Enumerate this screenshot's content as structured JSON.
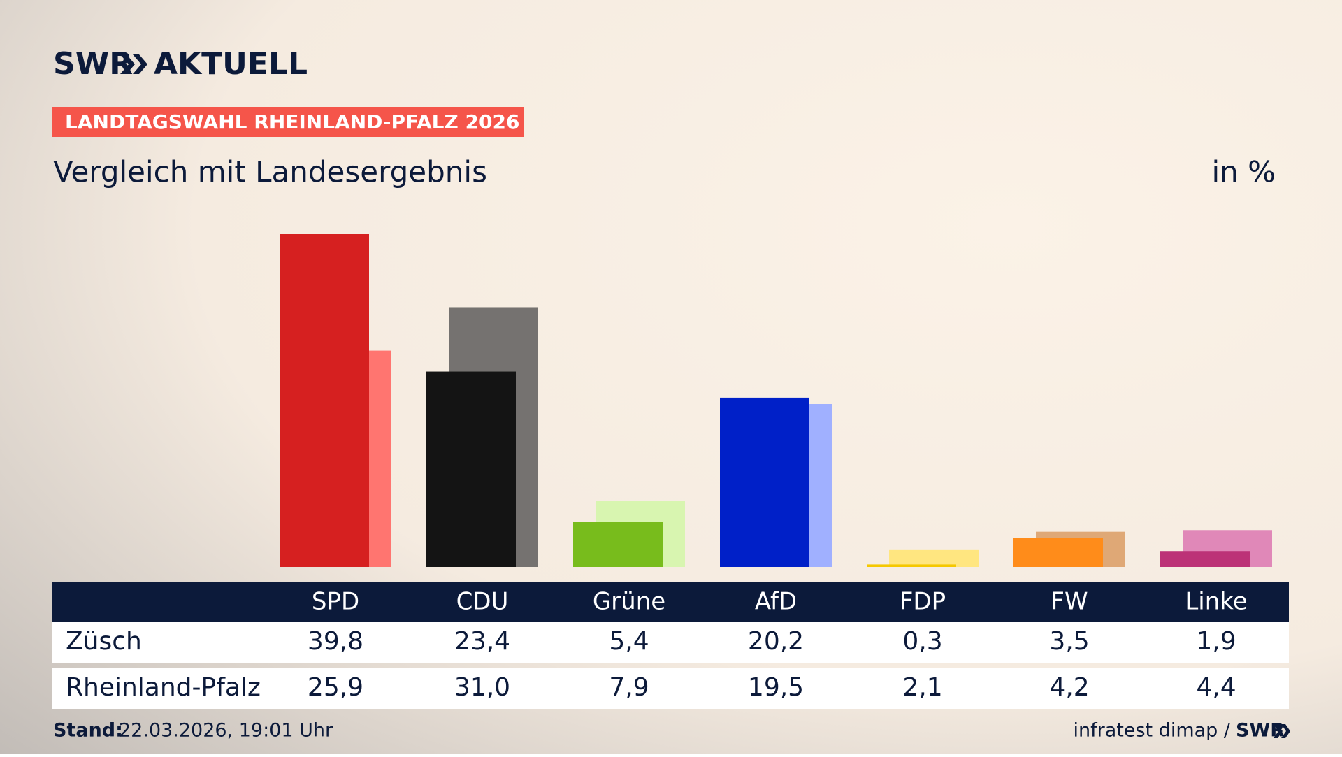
{
  "brand": {
    "left": "SWR",
    "right": "AKTUELL"
  },
  "chart_data": {
    "type": "bar",
    "banner": "LANDTAGSWAHL RHEINLAND-PFALZ 2026",
    "title": "Vergleich mit Landesergebnis",
    "unit": "in %",
    "categories": [
      "SPD",
      "CDU",
      "Grüne",
      "AfD",
      "FDP",
      "FW",
      "Linke"
    ],
    "series": [
      {
        "name": "Züsch",
        "values": [
          39.8,
          23.4,
          5.4,
          20.2,
          0.3,
          3.5,
          1.9
        ],
        "value_labels": [
          "39,8",
          "23,4",
          "5,4",
          "20,2",
          "0,3",
          "3,5",
          "1,9"
        ],
        "colors": [
          "#d62020",
          "#141414",
          "#78bc1c",
          "#0020c8",
          "#f5c800",
          "#ff8c1a",
          "#bc3277"
        ]
      },
      {
        "name": "Rheinland-Pfalz",
        "values": [
          25.9,
          31.0,
          7.9,
          19.5,
          2.1,
          4.2,
          4.4
        ],
        "value_labels": [
          "25,9",
          "31,0",
          "7,9",
          "19,5",
          "2,1",
          "4,2",
          "4,4"
        ],
        "colors": [
          "#ff7570",
          "#757270",
          "#d8f5b0",
          "#a0b0ff",
          "#ffe680",
          "#dfa876",
          "#e088b8"
        ]
      }
    ]
  },
  "footer": {
    "stand_label": "Stand:",
    "stand": "22.03.2026, 19:01 Uhr",
    "source": "infratest dimap /",
    "source_logo": "SWR"
  }
}
